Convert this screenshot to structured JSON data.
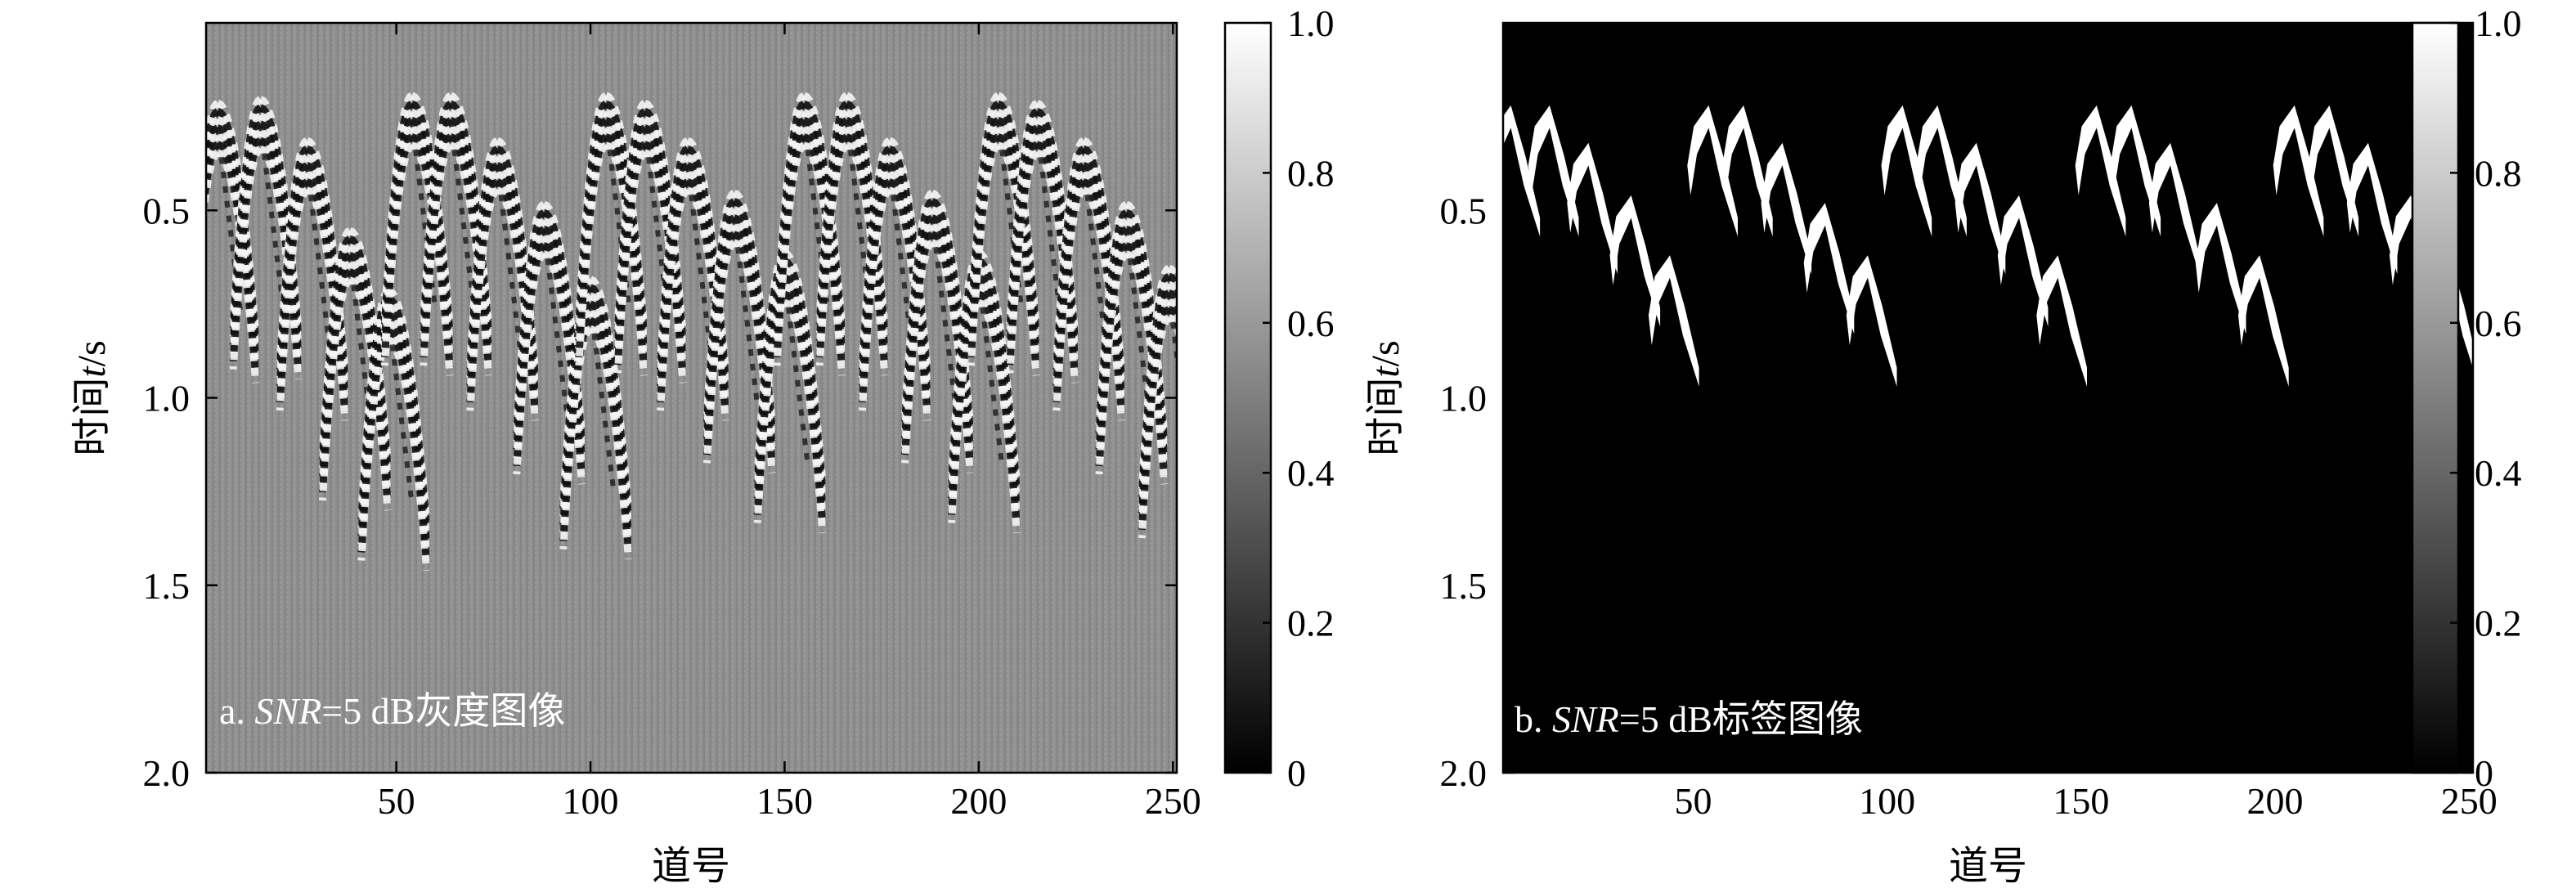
{
  "chart_data": [
    {
      "type": "heatmap",
      "title": "",
      "caption_prefix": "a. ",
      "caption_em": "SNR",
      "caption_suffix": "=5 dB灰度图像",
      "xlabel": "道号",
      "ylabel_prefix": "时间",
      "ylabel_em": "t",
      "ylabel_suffix": "/s",
      "xlim": [
        1,
        251
      ],
      "ylim": [
        0,
        2.0
      ],
      "y_inverted": true,
      "x_ticks": [
        "50",
        "100",
        "150",
        "200",
        "250"
      ],
      "y_ticks": [
        "0.5",
        "1.0",
        "1.5",
        "2.0"
      ],
      "colorbar": {
        "range": [
          0,
          1
        ],
        "ticks": [
          "0",
          "0.2",
          "0.4",
          "0.6",
          "0.8",
          "1.0"
        ],
        "colormap": "gray"
      },
      "events": [
        {
          "trace": 4,
          "time": 0.28
        },
        {
          "trace": 15,
          "time": 0.27
        },
        {
          "trace": 27,
          "time": 0.38
        },
        {
          "trace": 38,
          "time": 0.62
        },
        {
          "trace": 48,
          "time": 0.78
        },
        {
          "trace": 54,
          "time": 0.26
        },
        {
          "trace": 64,
          "time": 0.26
        },
        {
          "trace": 76,
          "time": 0.38
        },
        {
          "trace": 88,
          "time": 0.55
        },
        {
          "trace": 100,
          "time": 0.75
        },
        {
          "trace": 104,
          "time": 0.26
        },
        {
          "trace": 114,
          "time": 0.28
        },
        {
          "trace": 125,
          "time": 0.38
        },
        {
          "trace": 137,
          "time": 0.52
        },
        {
          "trace": 150,
          "time": 0.68
        },
        {
          "trace": 155,
          "time": 0.26
        },
        {
          "trace": 166,
          "time": 0.26
        },
        {
          "trace": 177,
          "time": 0.38
        },
        {
          "trace": 188,
          "time": 0.52
        },
        {
          "trace": 200,
          "time": 0.68
        },
        {
          "trace": 205,
          "time": 0.26
        },
        {
          "trace": 215,
          "time": 0.28
        },
        {
          "trace": 227,
          "time": 0.38
        },
        {
          "trace": 238,
          "time": 0.55
        },
        {
          "trace": 249,
          "time": 0.72
        }
      ]
    },
    {
      "type": "heatmap",
      "title": "",
      "caption_prefix": "b. ",
      "caption_em": "SNR",
      "caption_suffix": "=5 dB标签图像",
      "xlabel": "道号",
      "ylabel_prefix": "时间",
      "ylabel_em": "t",
      "ylabel_suffix": "/s",
      "xlim": [
        1,
        251
      ],
      "ylim": [
        0,
        2.0
      ],
      "y_inverted": true,
      "x_ticks": [
        "50",
        "100",
        "150",
        "200",
        "250"
      ],
      "y_ticks": [
        "0.5",
        "1.0",
        "1.5",
        "2.0"
      ],
      "colorbar": {
        "range": [
          0,
          1
        ],
        "ticks": [
          "0",
          "0.2",
          "0.4",
          "0.6",
          "0.8",
          "1.0"
        ],
        "colormap": "gray"
      },
      "label_regions": [
        {
          "trace": 3,
          "time": 0.22
        },
        {
          "trace": 13,
          "time": 0.22
        },
        {
          "trace": 23,
          "time": 0.32
        },
        {
          "trace": 34,
          "time": 0.46
        },
        {
          "trace": 44,
          "time": 0.62
        },
        {
          "trace": 54,
          "time": 0.22
        },
        {
          "trace": 63,
          "time": 0.22
        },
        {
          "trace": 73,
          "time": 0.32
        },
        {
          "trace": 84,
          "time": 0.48
        },
        {
          "trace": 95,
          "time": 0.62
        },
        {
          "trace": 104,
          "time": 0.22
        },
        {
          "trace": 113,
          "time": 0.22
        },
        {
          "trace": 123,
          "time": 0.32
        },
        {
          "trace": 134,
          "time": 0.46
        },
        {
          "trace": 144,
          "time": 0.62
        },
        {
          "trace": 154,
          "time": 0.22
        },
        {
          "trace": 163,
          "time": 0.22
        },
        {
          "trace": 173,
          "time": 0.32
        },
        {
          "trace": 185,
          "time": 0.48
        },
        {
          "trace": 196,
          "time": 0.62
        },
        {
          "trace": 205,
          "time": 0.22
        },
        {
          "trace": 214,
          "time": 0.22
        },
        {
          "trace": 224,
          "time": 0.32
        },
        {
          "trace": 235,
          "time": 0.46
        },
        {
          "trace": 245,
          "time": 0.62
        }
      ]
    }
  ]
}
